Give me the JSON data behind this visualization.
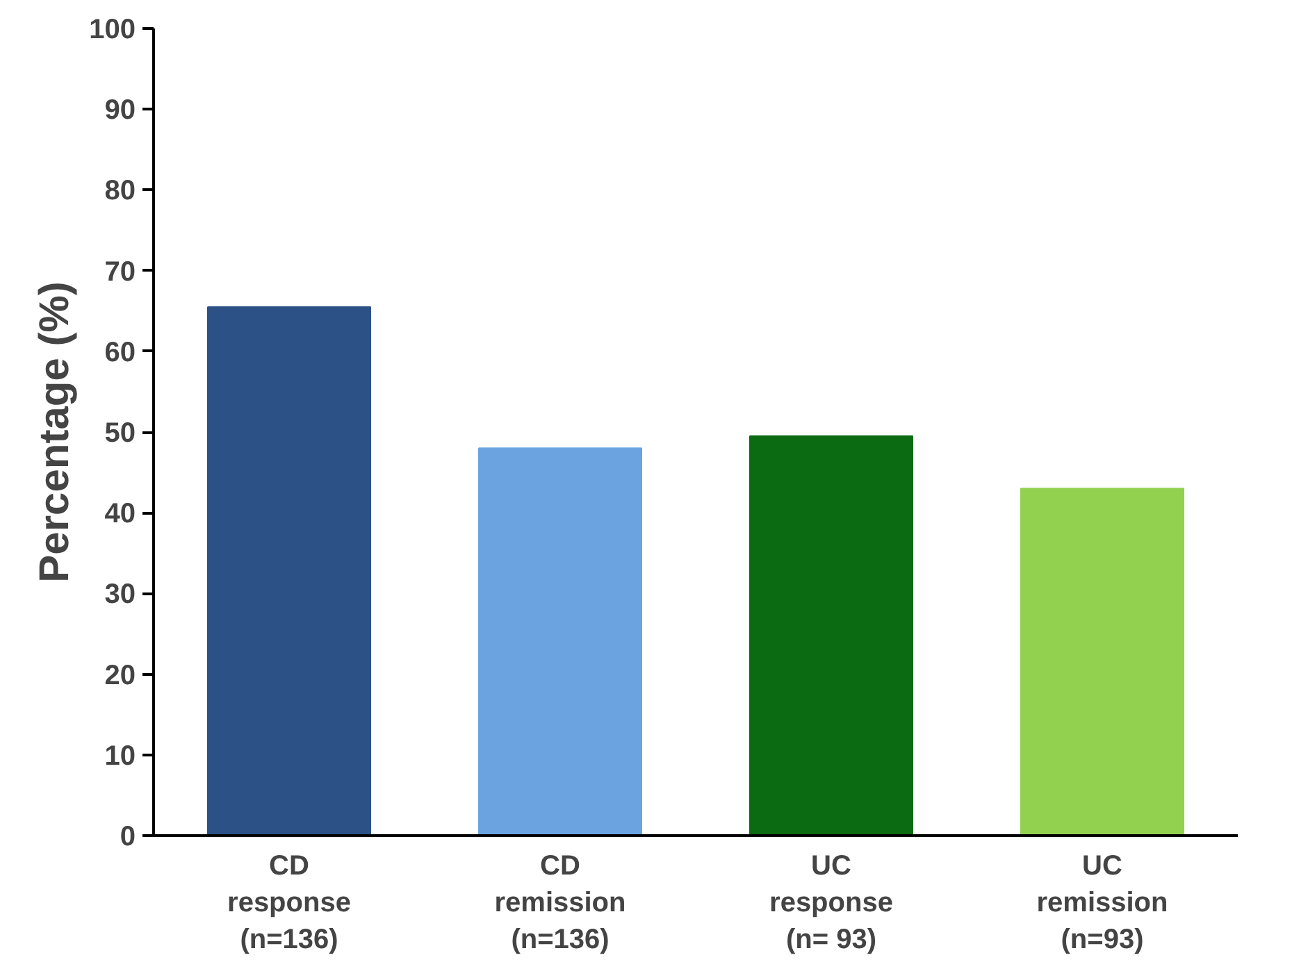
{
  "chart_data": {
    "type": "bar",
    "ylabel": "Percentage (%)",
    "categories": [
      "CD\nresponse\n(n=136)",
      "CD\nremission\n(n=136)",
      "UC\nresponse\n(n= 93)",
      "UC\nremission\n(n=93)"
    ],
    "values": [
      65.5,
      48,
      49.5,
      43
    ],
    "colors": [
      "#2b5186",
      "#6aa3e0",
      "#0b6b12",
      "#92d050"
    ],
    "ylim": [
      0,
      100
    ],
    "yticks": [
      0,
      10,
      20,
      30,
      40,
      50,
      60,
      70,
      80,
      90,
      100
    ],
    "grid": false
  }
}
